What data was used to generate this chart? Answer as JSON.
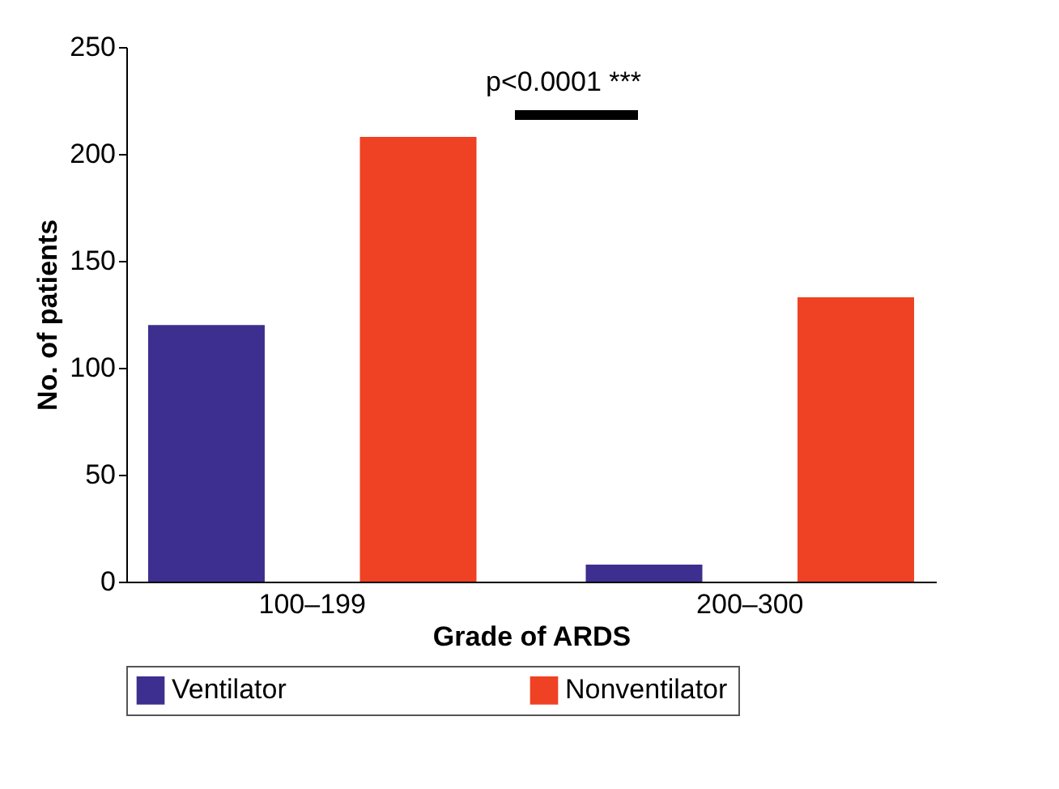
{
  "chart_data": {
    "type": "bar",
    "xlabel": "Grade of ARDS",
    "ylabel": "No. of patients",
    "categories": [
      "100–199",
      "200–300"
    ],
    "series": [
      {
        "name": "Ventilator",
        "color": "#3d2f8f",
        "values": [
          120,
          8
        ]
      },
      {
        "name": "Nonventilator",
        "color": "#ef4123",
        "values": [
          208,
          133
        ]
      }
    ],
    "ylim": [
      0,
      250
    ],
    "yticks": [
      0,
      50,
      100,
      150,
      200,
      250
    ],
    "legend": "bottom",
    "grid": false,
    "annotations": [
      "p<0.0001 ***"
    ]
  }
}
